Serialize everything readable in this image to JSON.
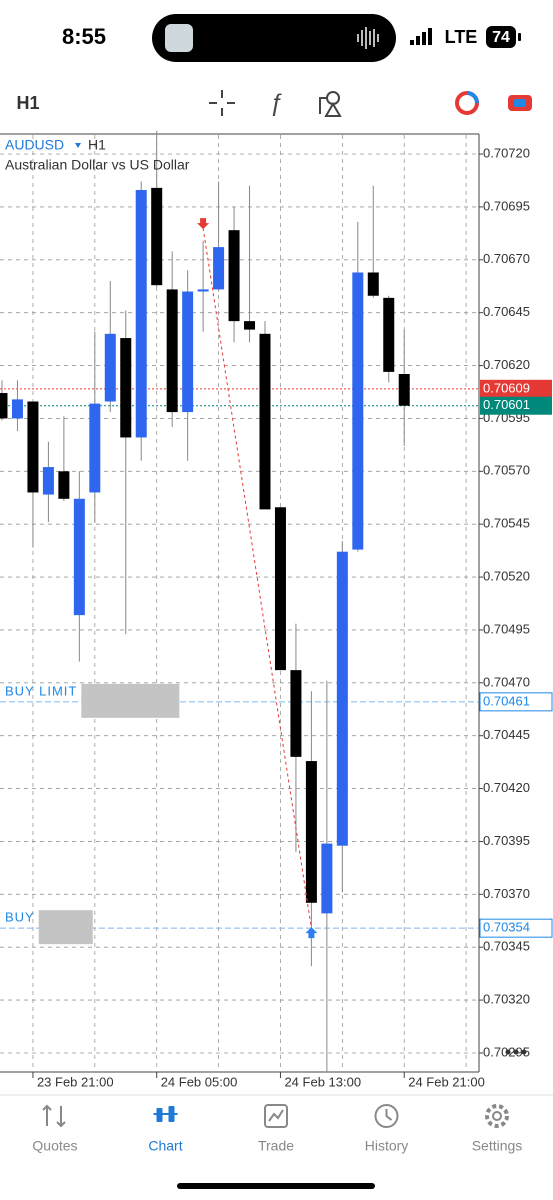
{
  "status_bar": {
    "time": "8:55",
    "network": "LTE",
    "battery": "74"
  },
  "toolbar": {
    "timeframe": "H1"
  },
  "chart_data": {
    "type": "candlestick",
    "symbol": "AUDUSD",
    "timeframe": "H1",
    "description": "Australian Dollar vs US Dollar",
    "categories": [
      null,
      null,
      "23 Feb 21:00",
      null,
      null,
      null,
      null,
      null,
      null,
      null,
      "24 Feb 05:00",
      null,
      null,
      null,
      null,
      null,
      null,
      null,
      "24 Feb 13:00",
      null,
      null,
      null,
      null,
      null,
      null,
      null,
      "24 Feb 21:00"
    ],
    "open": [
      0.70607,
      0.70595,
      0.70603,
      0.70559,
      0.7057,
      0.70502,
      0.7056,
      0.70603,
      0.70633,
      0.70586,
      0.70704,
      0.70656,
      0.70598,
      0.70655,
      0.70656,
      0.70684,
      0.70641,
      0.70635,
      0.70553,
      0.70476,
      0.70433,
      0.70361,
      0.70393,
      0.70533,
      0.70664,
      0.70652,
      0.70616
    ],
    "high": [
      0.70613,
      0.70613,
      0.70603,
      0.70584,
      0.70596,
      0.7057,
      0.70636,
      0.7066,
      0.70646,
      0.70707,
      0.70731,
      0.70674,
      0.70665,
      0.70679,
      0.70707,
      0.70695,
      0.70705,
      0.70641,
      0.70553,
      0.70498,
      0.70466,
      0.70471,
      0.70537,
      0.70688,
      0.70705,
      0.70653,
      0.70637
    ],
    "low": [
      0.70594,
      0.70589,
      0.70534,
      0.70546,
      0.70556,
      0.7048,
      0.70546,
      0.70598,
      0.70493,
      0.70575,
      0.70657,
      0.70591,
      0.70575,
      0.70636,
      0.70655,
      0.70631,
      0.70631,
      0.70552,
      0.70476,
      0.7039,
      0.70336,
      0.70286,
      0.70371,
      0.70532,
      0.70652,
      0.70612,
      0.70582
    ],
    "close": [
      0.70595,
      0.70604,
      0.7056,
      0.70572,
      0.70557,
      0.70557,
      0.70602,
      0.70635,
      0.70586,
      0.70703,
      0.70658,
      0.70598,
      0.70655,
      0.70656,
      0.70676,
      0.70641,
      0.70637,
      0.70552,
      0.70476,
      0.70435,
      0.70366,
      0.70394,
      0.70532,
      0.70664,
      0.70653,
      0.70617,
      0.70601
    ],
    "up_color": "#2f66f0",
    "down_color": "#000000",
    "ylim": [
      0.70286,
      0.70729
    ],
    "yticks": [
      {
        "value": 0.7072,
        "label": "0.70720"
      },
      {
        "value": 0.70695,
        "label": "0.70695"
      },
      {
        "value": 0.7067,
        "label": "0.70670"
      },
      {
        "value": 0.70645,
        "label": "0.70645"
      },
      {
        "value": 0.7062,
        "label": "0.70620"
      },
      {
        "value": 0.70595,
        "label": "0.70595"
      },
      {
        "value": 0.7057,
        "label": "0.70570"
      },
      {
        "value": 0.70545,
        "label": "0.70545"
      },
      {
        "value": 0.7052,
        "label": "0.70520"
      },
      {
        "value": 0.70495,
        "label": "0.70495"
      },
      {
        "value": 0.7047,
        "label": "0.70470"
      },
      {
        "value": 0.70445,
        "label": "0.70445"
      },
      {
        "value": 0.7042,
        "label": "0.70420"
      },
      {
        "value": 0.70395,
        "label": "0.70395"
      },
      {
        "value": 0.7037,
        "label": "0.70370"
      },
      {
        "value": 0.70345,
        "label": "0.70345"
      },
      {
        "value": 0.7032,
        "label": "0.70320"
      },
      {
        "value": 0.70295,
        "label": "0.70295"
      }
    ],
    "grid": true,
    "price_lines": [
      {
        "price": {
          "value": 0.70609,
          "label": "0.70609"
        },
        "color": "#e53935"
      },
      {
        "price": {
          "value": 0.70601,
          "label": "0.70601"
        },
        "color": "#00897b"
      }
    ],
    "orders": [
      {
        "name": "BUY LIMIT",
        "price": {
          "value": 0.70461,
          "label": "0.70461"
        },
        "color": "#1e88e5"
      },
      {
        "name": "BUY",
        "price": {
          "value": 0.70354,
          "label": "0.70354"
        },
        "color": "#1e88e5"
      }
    ],
    "markers": [
      {
        "index": 13,
        "price": 0.70685,
        "color": "#e53935"
      },
      {
        "index": 20,
        "price": 0.70354,
        "color": "#2f80ed"
      }
    ]
  },
  "tabs": [
    "Quotes",
    "Chart",
    "Trade",
    "History",
    "Settings"
  ]
}
